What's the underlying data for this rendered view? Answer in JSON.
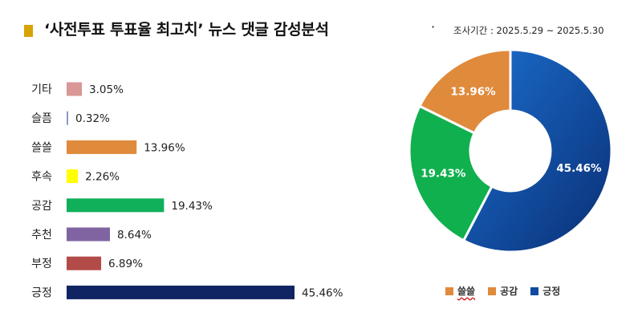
{
  "title": "‘사전투표 투표율 최고치’ 뉴스 댓글 감성분석",
  "title_suffix": "·",
  "period": "조사기간 : 2025.5.29 ~ 2025.5.30",
  "chart_data": [
    {
      "type": "bar",
      "orientation": "horizontal",
      "categories": [
        "기타",
        "슬픔",
        "쓸쓸",
        "후속",
        "공감",
        "추천",
        "부정",
        "긍정"
      ],
      "values": [
        3.05,
        0.32,
        13.96,
        2.26,
        19.43,
        8.64,
        6.89,
        45.46
      ],
      "labels": [
        "3.05%",
        "0.32%",
        "13.96%",
        "2.26%",
        "19.43%",
        "8.64%",
        "6.89%",
        "45.46%"
      ],
      "colors": [
        "#d99795",
        "#8d9bc9",
        "#e08a3c",
        "#ffff00",
        "#10b05a",
        "#8064a2",
        "#b34c49",
        "#102463"
      ],
      "xlim": [
        0,
        50
      ]
    },
    {
      "type": "pie",
      "donut": true,
      "categories": [
        "쓸쓸",
        "공감",
        "긍정"
      ],
      "values": [
        13.96,
        19.43,
        45.46
      ],
      "labels": [
        "13.96%",
        "19.43%",
        "45.46%"
      ],
      "colors": [
        "#e08a3c",
        "#10b04e",
        "#0d3d8c"
      ],
      "legend": "bottom"
    }
  ],
  "legend": {
    "items": [
      {
        "label": "쓸쓸",
        "color": "#e08a3c"
      },
      {
        "label": "공감",
        "color": "#e08a3c"
      },
      {
        "label": "긍정",
        "color": "#0d4aa0"
      }
    ]
  }
}
